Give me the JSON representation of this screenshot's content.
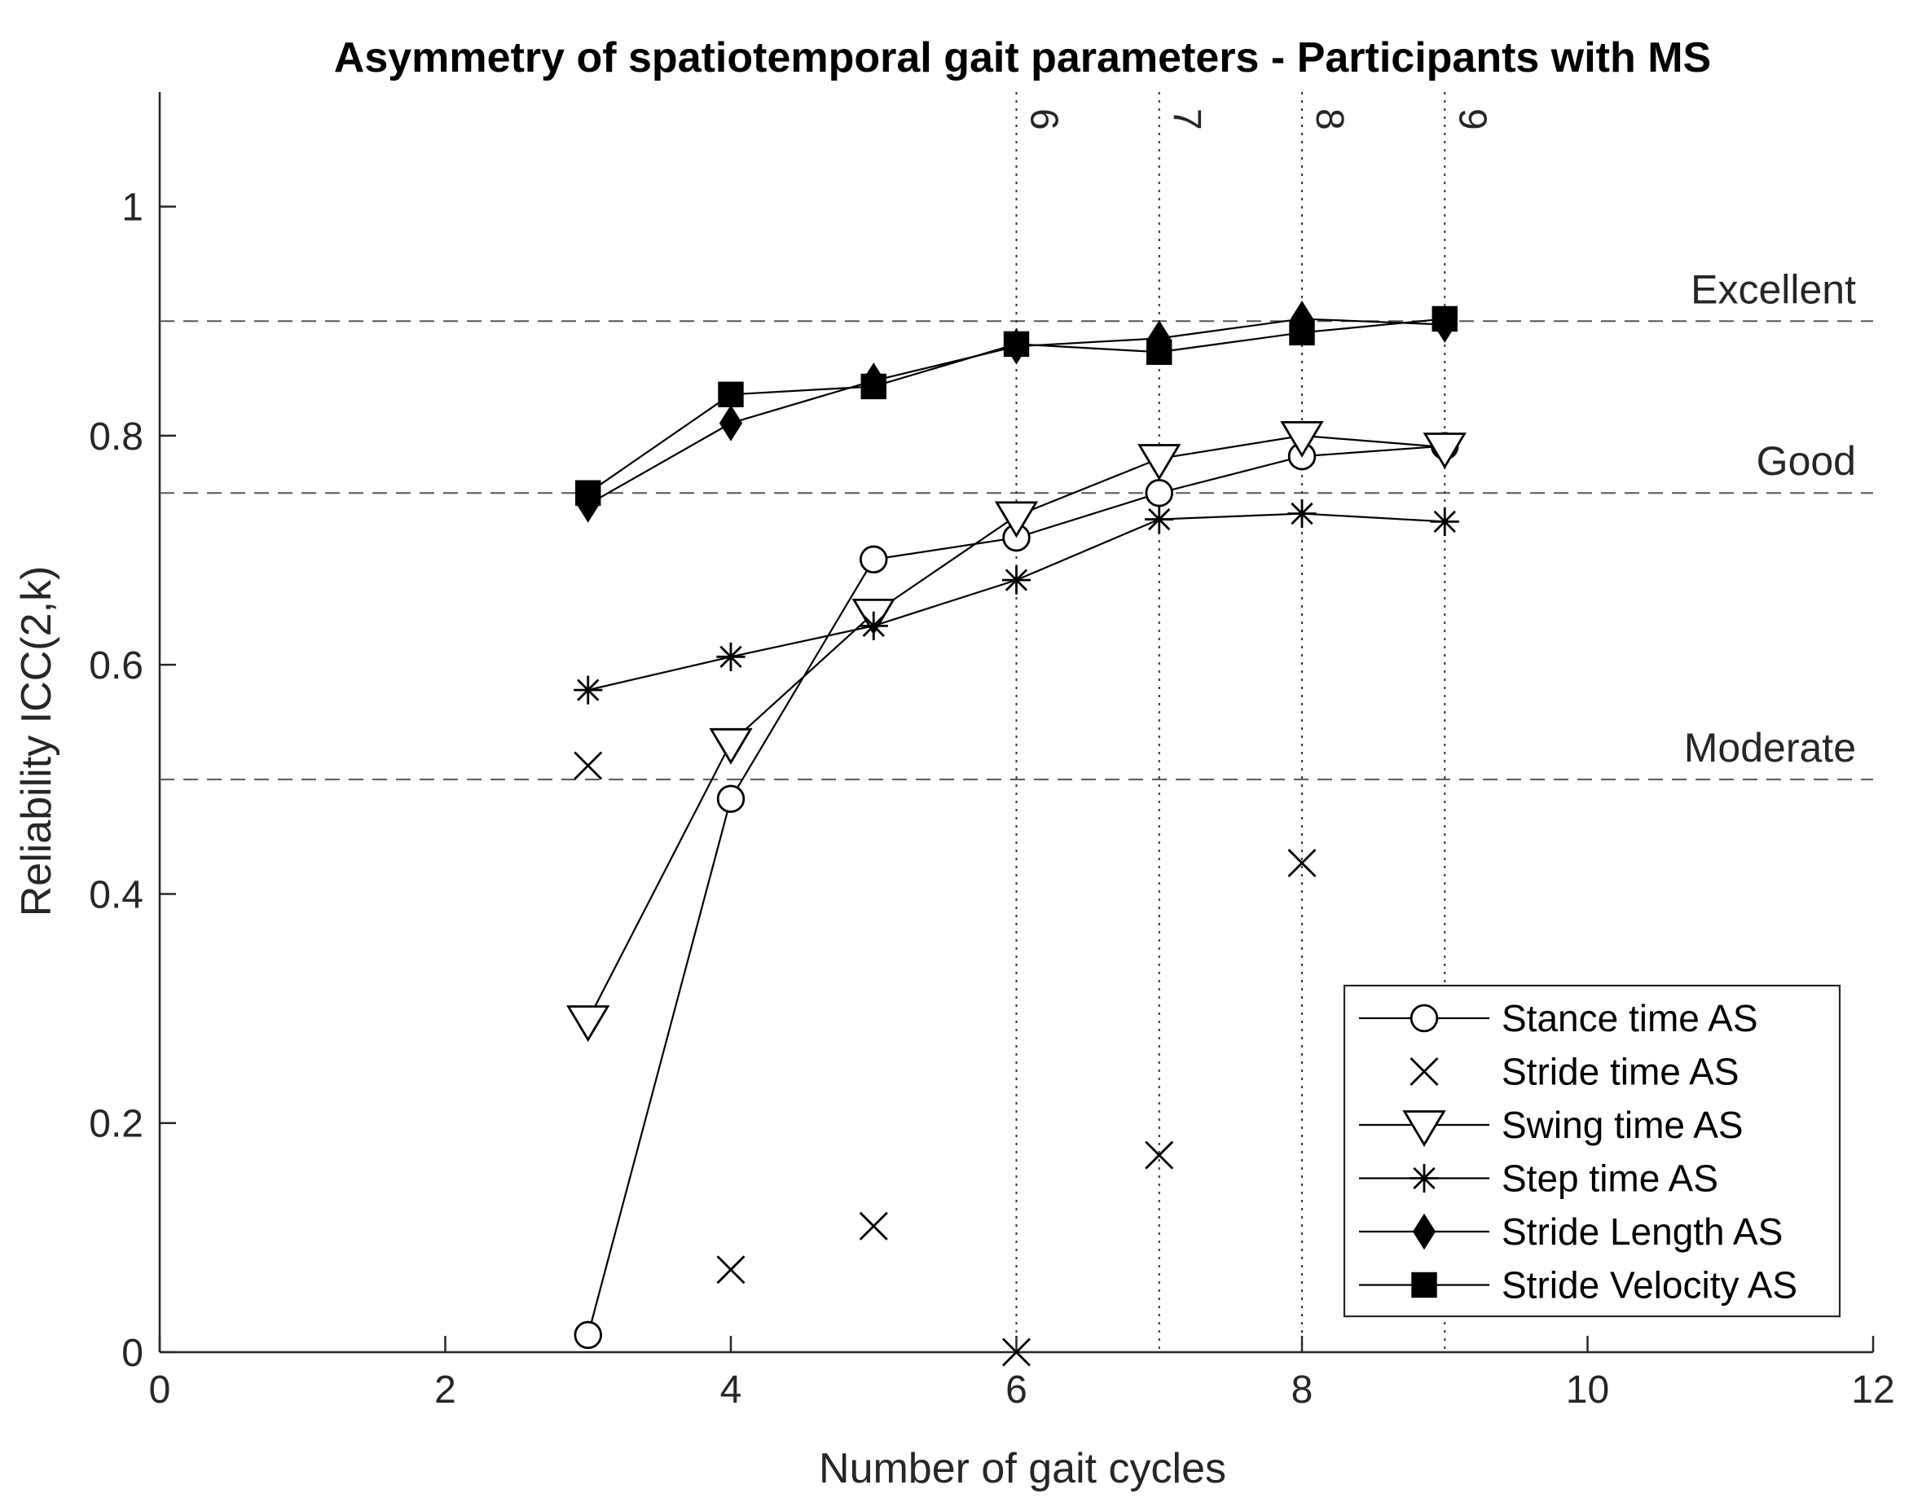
{
  "chart_data": {
    "type": "line",
    "title": "Asymmetry of spatiotemporal gait parameters - Participants with MS",
    "xlabel": "Number of gait cycles",
    "ylabel": "Reliability ICC(2,k)",
    "xlim": [
      0,
      12
    ],
    "ylim": [
      0,
      1.1
    ],
    "xticks": [
      0,
      2,
      4,
      6,
      8,
      10,
      12
    ],
    "xtick_labels": [
      "0",
      "2",
      "4",
      "6",
      "8",
      "10",
      "12"
    ],
    "yticks": [
      0,
      0.2,
      0.4,
      0.6,
      0.8,
      1
    ],
    "ytick_labels": [
      "0",
      "0.2",
      "0.4",
      "0.6",
      "0.8",
      "1"
    ],
    "grid": false,
    "legend_position": "bottom-right",
    "reference_lines": [
      {
        "y": 0.9,
        "label": "Excellent"
      },
      {
        "y": 0.75,
        "label": "Good"
      },
      {
        "y": 0.5,
        "label": "Moderate"
      }
    ],
    "vertical_lines": [
      {
        "x": 6,
        "label": "6"
      },
      {
        "x": 7,
        "label": "7"
      },
      {
        "x": 8,
        "label": "8"
      },
      {
        "x": 9,
        "label": "9"
      }
    ],
    "x": [
      3,
      4,
      5,
      6,
      7,
      8,
      9
    ],
    "series": [
      {
        "name": "Stance time AS",
        "marker": "circle",
        "line": true,
        "values": [
          0.015,
          0.483,
          0.692,
          0.711,
          0.75,
          0.782,
          0.791
        ]
      },
      {
        "name": "Stride time AS",
        "marker": "x",
        "line": false,
        "values": [
          0.512,
          0.072,
          0.11,
          0.0,
          0.172,
          0.427,
          null
        ]
      },
      {
        "name": "Swing time AS",
        "marker": "triangle-down",
        "line": true,
        "values": [
          0.29,
          0.532,
          0.645,
          0.73,
          0.78,
          0.8,
          0.79
        ]
      },
      {
        "name": "Step time AS",
        "marker": "asterisk",
        "line": true,
        "values": [
          0.578,
          0.607,
          0.634,
          0.674,
          0.727,
          0.732,
          0.725
        ]
      },
      {
        "name": "Stride Length AS",
        "marker": "diamond",
        "line": true,
        "values": [
          0.74,
          0.811,
          0.848,
          0.878,
          0.885,
          0.902,
          0.897
        ]
      },
      {
        "name": "Stride Velocity AS",
        "marker": "square",
        "line": true,
        "values": [
          0.75,
          0.836,
          0.843,
          0.88,
          0.873,
          0.89,
          0.902
        ]
      }
    ]
  }
}
